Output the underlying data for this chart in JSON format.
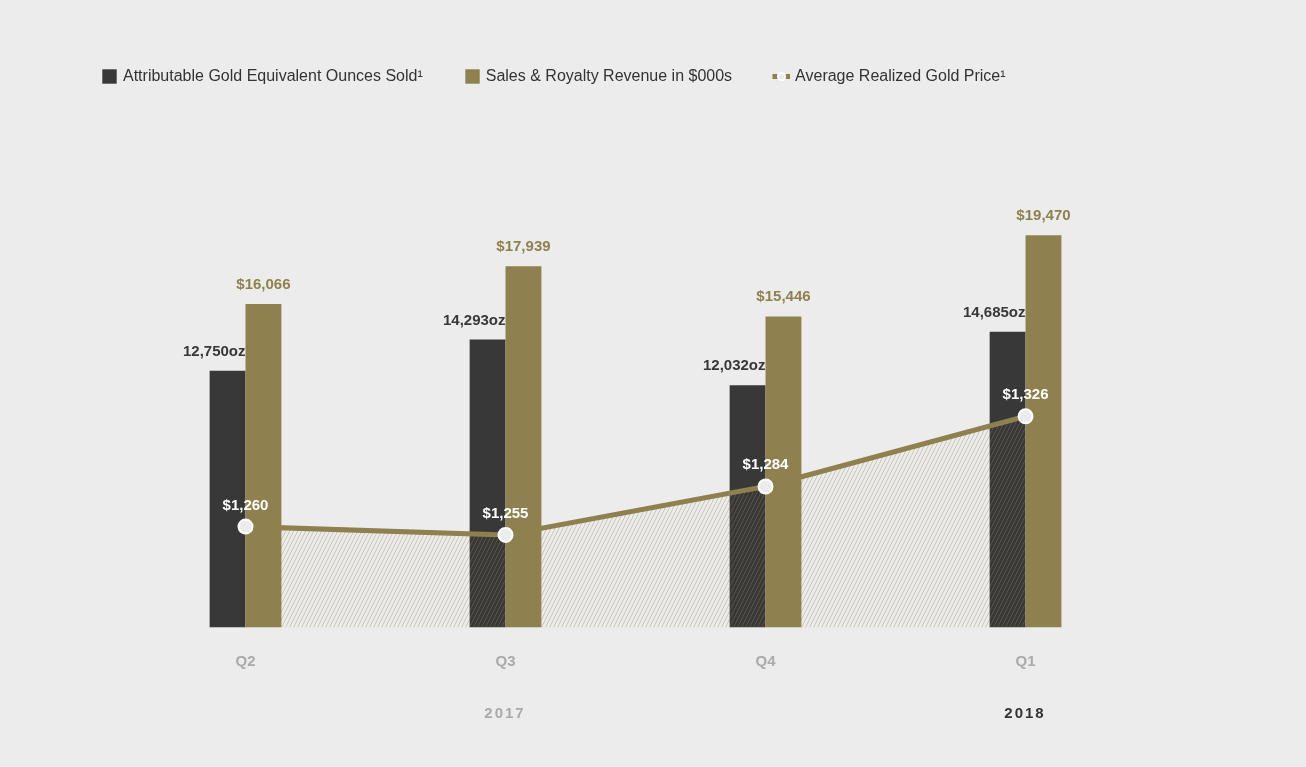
{
  "chart_data": {
    "type": "bar",
    "categories": [
      "Q2",
      "Q3",
      "Q4",
      "Q1"
    ],
    "tick_labels": "x",
    "grid": false,
    "legend": "top left",
    "series": [
      {
        "name": "Attributable Gold Equivalent Ounces Sold¹",
        "color": "#383838",
        "values": [
          12750,
          14293,
          12032,
          14685
        ],
        "value_labels": [
          "12,750oz",
          "14,293oz",
          "12,032oz",
          "14,685oz"
        ]
      },
      {
        "name": "Sales & Royalty Revenue in $000s",
        "color": "#8f804f",
        "values": [
          16066,
          17939,
          15446,
          19470
        ],
        "value_labels": [
          "$16,066",
          "$17,939",
          "$15,446",
          "$19,470"
        ]
      },
      {
        "name": "Average Realized Gold Price¹",
        "type": "area",
        "axis": "y2",
        "color": "#8f804f",
        "marker": "circle",
        "values": [
          1260,
          1255,
          1284,
          1326
        ],
        "value_labels": [
          "$1,260",
          "$1,255",
          "$1,284",
          "$1,326"
        ]
      }
    ],
    "annotations": [
      "2017",
      "2018"
    ]
  }
}
